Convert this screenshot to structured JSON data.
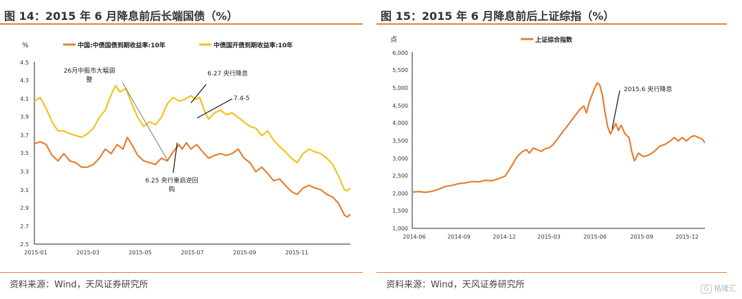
{
  "left": {
    "title": "图 14：2015 年 6 月降息前后长端国债（%）",
    "source": "资料来源：Wind，天风证券研究所",
    "chart_data": {
      "type": "line",
      "ylabel_unit": "%",
      "ylim": [
        2.5,
        4.5
      ],
      "y_ticks": [
        "4.5",
        "4.3",
        "4.1",
        "3.9",
        "3.7",
        "3.5",
        "3.3",
        "3.1",
        "2.9",
        "2.7",
        "2.5"
      ],
      "x_ticks": [
        "2015-01",
        "2015-03",
        "2015-05",
        "2015-07",
        "2015-09",
        "2015-11"
      ],
      "grid": false,
      "legend_position": "top",
      "series": [
        {
          "name": "中国:中债国债到期收益率:10年",
          "color": "#e87e2e",
          "points": [
            [
              0,
              3.61
            ],
            [
              4,
              3.63
            ],
            [
              8,
              3.6
            ],
            [
              12,
              3.48
            ],
            [
              16,
              3.42
            ],
            [
              20,
              3.5
            ],
            [
              24,
              3.42
            ],
            [
              28,
              3.4
            ],
            [
              32,
              3.35
            ],
            [
              36,
              3.35
            ],
            [
              40,
              3.38
            ],
            [
              44,
              3.45
            ],
            [
              48,
              3.55
            ],
            [
              52,
              3.5
            ],
            [
              56,
              3.6
            ],
            [
              60,
              3.55
            ],
            [
              63,
              3.68
            ],
            [
              66,
              3.6
            ],
            [
              70,
              3.48
            ],
            [
              74,
              3.42
            ],
            [
              78,
              3.4
            ],
            [
              82,
              3.38
            ],
            [
              86,
              3.45
            ],
            [
              90,
              3.42
            ],
            [
              94,
              3.52
            ],
            [
              98,
              3.6
            ],
            [
              100,
              3.55
            ],
            [
              103,
              3.62
            ],
            [
              106,
              3.55
            ],
            [
              110,
              3.6
            ],
            [
              114,
              3.52
            ],
            [
              118,
              3.45
            ],
            [
              122,
              3.48
            ],
            [
              126,
              3.5
            ],
            [
              130,
              3.48
            ],
            [
              134,
              3.5
            ],
            [
              138,
              3.55
            ],
            [
              142,
              3.45
            ],
            [
              146,
              3.4
            ],
            [
              150,
              3.3
            ],
            [
              154,
              3.35
            ],
            [
              158,
              3.28
            ],
            [
              162,
              3.2
            ],
            [
              166,
              3.22
            ],
            [
              170,
              3.15
            ],
            [
              174,
              3.08
            ],
            [
              178,
              3.05
            ],
            [
              182,
              3.12
            ],
            [
              186,
              3.15
            ],
            [
              190,
              3.12
            ],
            [
              194,
              3.1
            ],
            [
              198,
              3.05
            ],
            [
              202,
              3.02
            ],
            [
              206,
              2.95
            ],
            [
              210,
              2.82
            ],
            [
              212,
              2.8
            ],
            [
              214,
              2.83
            ]
          ]
        },
        {
          "name": "中债国开债到期收益率:10年",
          "color": "#f2c31a",
          "points": [
            [
              0,
              4.08
            ],
            [
              4,
              4.12
            ],
            [
              8,
              4.0
            ],
            [
              12,
              3.85
            ],
            [
              16,
              3.75
            ],
            [
              20,
              3.75
            ],
            [
              24,
              3.72
            ],
            [
              28,
              3.7
            ],
            [
              32,
              3.68
            ],
            [
              36,
              3.72
            ],
            [
              40,
              3.78
            ],
            [
              44,
              3.9
            ],
            [
              48,
              3.98
            ],
            [
              52,
              4.15
            ],
            [
              55,
              4.25
            ],
            [
              58,
              4.18
            ],
            [
              62,
              4.22
            ],
            [
              66,
              4.05
            ],
            [
              70,
              3.9
            ],
            [
              74,
              3.8
            ],
            [
              78,
              3.85
            ],
            [
              82,
              3.82
            ],
            [
              86,
              3.9
            ],
            [
              90,
              4.05
            ],
            [
              94,
              4.12
            ],
            [
              98,
              4.08
            ],
            [
              102,
              4.1
            ],
            [
              106,
              4.14
            ],
            [
              109,
              4.1
            ],
            [
              112,
              4.12
            ],
            [
              115,
              3.98
            ],
            [
              118,
              3.88
            ],
            [
              122,
              3.95
            ],
            [
              126,
              3.98
            ],
            [
              130,
              3.93
            ],
            [
              134,
              3.95
            ],
            [
              138,
              3.9
            ],
            [
              142,
              3.85
            ],
            [
              146,
              3.8
            ],
            [
              150,
              3.78
            ],
            [
              154,
              3.7
            ],
            [
              158,
              3.75
            ],
            [
              162,
              3.65
            ],
            [
              166,
              3.58
            ],
            [
              170,
              3.52
            ],
            [
              174,
              3.45
            ],
            [
              178,
              3.4
            ],
            [
              182,
              3.5
            ],
            [
              186,
              3.55
            ],
            [
              190,
              3.52
            ],
            [
              194,
              3.5
            ],
            [
              198,
              3.45
            ],
            [
              202,
              3.38
            ],
            [
              206,
              3.25
            ],
            [
              210,
              3.1
            ],
            [
              212,
              3.09
            ],
            [
              214,
              3.12
            ]
          ]
        }
      ],
      "annotations": [
        {
          "text_lines": [
            "26月中股市大幅调",
            "整"
          ]
        },
        {
          "text_lines": [
            "6.27 央行降息"
          ]
        },
        {
          "text_lines": [
            "7.4-5"
          ]
        },
        {
          "text_lines": [
            "6.25 央行重启逆回",
            "购"
          ]
        }
      ]
    }
  },
  "right": {
    "title": "图 15：2015 年 6 月降息前后上证综指（%）",
    "source": "资料来源：Wind，天风证券研究所",
    "chart_data": {
      "type": "line",
      "ylabel_unit": "点",
      "ylim": [
        1000,
        6000
      ],
      "y_ticks": [
        "6,000",
        "5,500",
        "5,000",
        "4,500",
        "4,000",
        "3,500",
        "3,000",
        "2,500",
        "2,000",
        "1,500",
        "1,000"
      ],
      "x_ticks": [
        "2014-06",
        "2014-09",
        "2014-12",
        "2015-03",
        "2015-06",
        "2015-09",
        "2015-12"
      ],
      "grid": false,
      "legend_position": "top",
      "series": [
        {
          "name": "上证综合指数",
          "color": "#e87e2e",
          "points": [
            [
              0,
              2040
            ],
            [
              5,
              2050
            ],
            [
              10,
              2030
            ],
            [
              15,
              2060
            ],
            [
              20,
              2120
            ],
            [
              25,
              2200
            ],
            [
              30,
              2230
            ],
            [
              35,
              2280
            ],
            [
              40,
              2300
            ],
            [
              45,
              2340
            ],
            [
              50,
              2330
            ],
            [
              55,
              2370
            ],
            [
              60,
              2360
            ],
            [
              65,
              2420
            ],
            [
              70,
              2500
            ],
            [
              75,
              2800
            ],
            [
              78,
              3000
            ],
            [
              80,
              3100
            ],
            [
              83,
              3200
            ],
            [
              86,
              3250
            ],
            [
              88,
              3150
            ],
            [
              91,
              3300
            ],
            [
              94,
              3250
            ],
            [
              97,
              3200
            ],
            [
              100,
              3280
            ],
            [
              103,
              3300
            ],
            [
              106,
              3400
            ],
            [
              110,
              3600
            ],
            [
              114,
              3800
            ],
            [
              118,
              4000
            ],
            [
              122,
              4200
            ],
            [
              126,
              4400
            ],
            [
              129,
              4500
            ],
            [
              131,
              4300
            ],
            [
              133,
              4600
            ],
            [
              135,
              4800
            ],
            [
              137,
              5000
            ],
            [
              139,
              5160
            ],
            [
              141,
              5100
            ],
            [
              143,
              4800
            ],
            [
              145,
              4300
            ],
            [
              147,
              3900
            ],
            [
              149,
              3700
            ],
            [
              151,
              3850
            ],
            [
              153,
              4000
            ],
            [
              155,
              3800
            ],
            [
              157,
              3950
            ],
            [
              160,
              3700
            ],
            [
              163,
              3600
            ],
            [
              165,
              3200
            ],
            [
              167,
              2930
            ],
            [
              170,
              3150
            ],
            [
              174,
              3050
            ],
            [
              178,
              3100
            ],
            [
              182,
              3200
            ],
            [
              186,
              3350
            ],
            [
              190,
              3400
            ],
            [
              194,
              3500
            ],
            [
              197,
              3600
            ],
            [
              200,
              3500
            ],
            [
              203,
              3600
            ],
            [
              206,
              3500
            ],
            [
              209,
              3600
            ],
            [
              212,
              3650
            ],
            [
              215,
              3600
            ],
            [
              218,
              3550
            ],
            [
              220,
              3450
            ]
          ]
        }
      ],
      "annotations": [
        {
          "text_lines": [
            "2015.6 央行降息"
          ]
        }
      ]
    }
  },
  "watermark": {
    "badge": "G",
    "text": "格隆汇"
  }
}
